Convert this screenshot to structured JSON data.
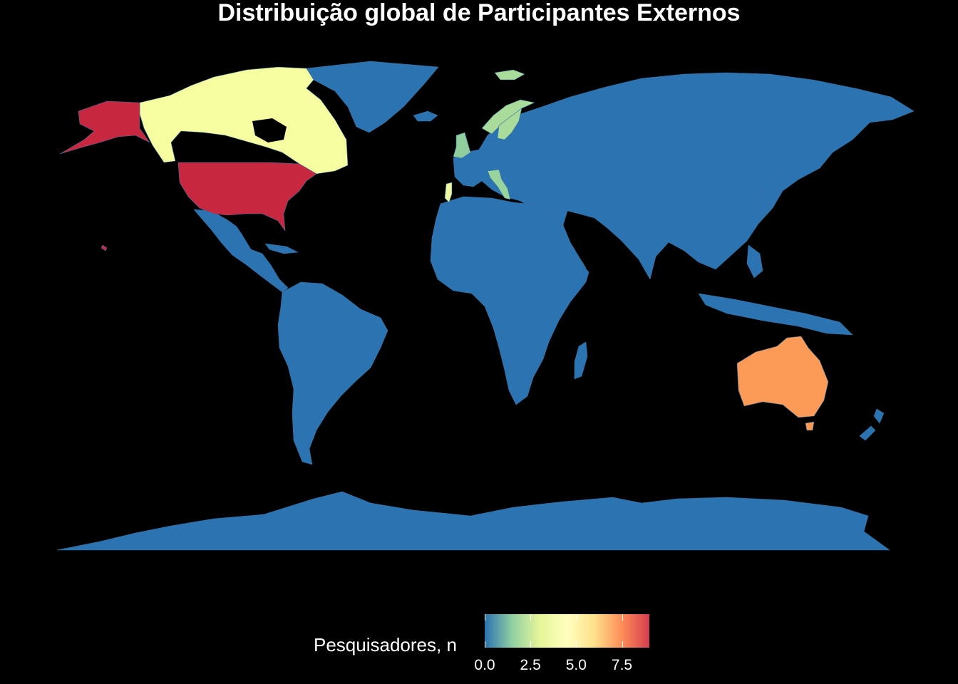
{
  "title": "Distribuição global de Participantes Externos",
  "legend": {
    "label": "Pesquisadores, n",
    "min": 0,
    "max": 9,
    "ticks": [
      {
        "value": 0,
        "label": "0.0"
      },
      {
        "value": 2.5,
        "label": "2.5"
      },
      {
        "value": 5,
        "label": "5.0"
      },
      {
        "value": 7.5,
        "label": "7.5"
      }
    ],
    "palette": [
      "#2b73b1",
      "#91cfa4",
      "#e6f598",
      "#ffffbf",
      "#fee08b",
      "#fc8d59",
      "#d53e4f"
    ]
  },
  "colors": {
    "background": "#000000",
    "zero_country": "#2b73b1",
    "border": "#3a6f9b"
  },
  "countries": [
    {
      "name": "USA",
      "value": 9,
      "color": "#c8283f"
    },
    {
      "name": "Canada",
      "value": 4.5,
      "color": "#f6fca0"
    },
    {
      "name": "Australia",
      "value": 7,
      "color": "#fc9a58"
    },
    {
      "name": "UK",
      "value": 1.5,
      "color": "#8fcf9e"
    },
    {
      "name": "Norway",
      "value": 1.5,
      "color": "#a9dc9a"
    },
    {
      "name": "Sweden",
      "value": 1.5,
      "color": "#a9dc9a"
    },
    {
      "name": "Italy",
      "value": 1.5,
      "color": "#98d49d"
    },
    {
      "name": "Portugal",
      "value": 4,
      "color": "#eef7a4"
    }
  ]
}
